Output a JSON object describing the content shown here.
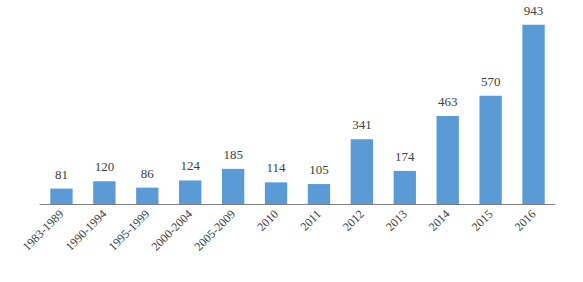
{
  "chart_data": {
    "type": "bar",
    "categories": [
      "1983-1989",
      "1990-1994",
      "1995-1999",
      "2000-2004",
      "2005-2009",
      "2010",
      "2011",
      "2012",
      "2013",
      "2014",
      "2015",
      "2016"
    ],
    "values": [
      81,
      120,
      86,
      124,
      185,
      114,
      105,
      341,
      174,
      463,
      570,
      943
    ],
    "color": "#5b9bd5",
    "ylim": [
      0,
      1000
    ],
    "grid": false,
    "data_labels": true,
    "tick_labels": "x"
  }
}
